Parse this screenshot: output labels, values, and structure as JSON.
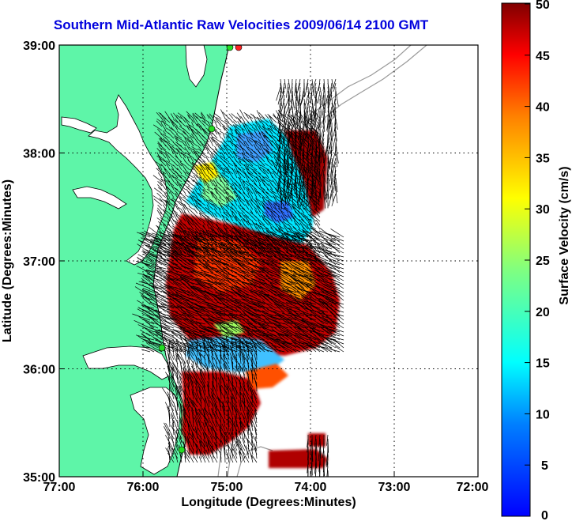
{
  "title": "Southern Mid-Atlantic Raw Velocities 2009/06/14 2100 GMT",
  "map": {
    "xlabel": "Longitude (Degrees:Minutes)",
    "ylabel": "Latitude (Degrees:Minutes)",
    "lon_range": [
      -77,
      -72
    ],
    "lat_range": [
      35,
      39
    ],
    "lon_ticks": [
      "77:00",
      "76:00",
      "75:00",
      "74:00",
      "73:00",
      "72:00"
    ],
    "lat_ticks": [
      "39:00",
      "38:00",
      "37:00",
      "36:00",
      "35:00"
    ],
    "grid": "dotted",
    "colors": {
      "land": "#5ef5a8",
      "water": "#ffffff",
      "coastline": "#000000",
      "bathymetry": "#999999",
      "station_marker": "#22dd22",
      "station_marker_alt": "#ff2222"
    }
  },
  "colorbar": {
    "label": "Surface Velocity (cm/s)",
    "ticks": [
      "50",
      "45",
      "40",
      "35",
      "30",
      "25",
      "20",
      "15",
      "10",
      "5",
      "0"
    ],
    "range": [
      0,
      50
    ],
    "colormap": "jet"
  }
}
